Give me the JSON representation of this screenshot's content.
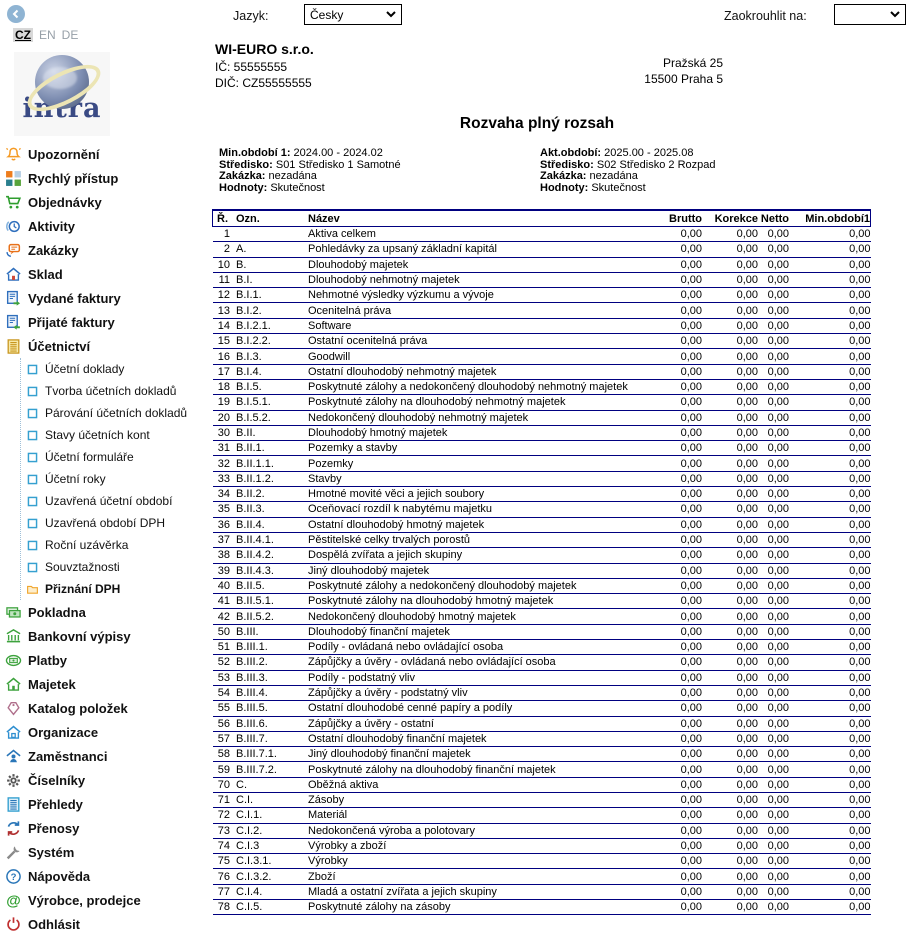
{
  "topbar": {
    "back_icon": "chevron-left-icon",
    "language_label": "Jazyk:",
    "language_value": "Česky",
    "round_label": "Zaokrouhlit na:",
    "round_value": ""
  },
  "sidebar": {
    "languages": [
      {
        "code": "CZ",
        "active": true
      },
      {
        "code": "EN",
        "active": false
      },
      {
        "code": "DE",
        "active": false
      }
    ],
    "logo_text": "intra",
    "menu": [
      {
        "label": "Upozornění",
        "icon": "bell-icon"
      },
      {
        "label": "Rychlý přístup",
        "icon": "grid-icon"
      },
      {
        "label": "Objednávky",
        "icon": "cart-icon"
      },
      {
        "label": "Aktivity",
        "icon": "clock-icon"
      },
      {
        "label": "Zakázky",
        "icon": "chat-phone-icon"
      },
      {
        "label": "Sklad",
        "icon": "warehouse-icon"
      },
      {
        "label": "Vydané faktury",
        "icon": "invoice-out-icon"
      },
      {
        "label": "Přijaté faktury",
        "icon": "invoice-in-icon"
      },
      {
        "label": "Účetnictví",
        "icon": "ledger-icon",
        "submenu": [
          {
            "label": "Účetní doklady",
            "icon": "checkbox-icon"
          },
          {
            "label": "Tvorba účetních dokladů",
            "icon": "checkbox-icon"
          },
          {
            "label": "Párování účetních dokladů",
            "icon": "checkbox-icon"
          },
          {
            "label": "Stavy účetních kont",
            "icon": "checkbox-icon"
          },
          {
            "label": "Účetní formuláře",
            "icon": "checkbox-icon"
          },
          {
            "label": "Účetní roky",
            "icon": "checkbox-icon"
          },
          {
            "label": "Uzavřená účetní období",
            "icon": "checkbox-icon"
          },
          {
            "label": "Uzavřená období DPH",
            "icon": "checkbox-icon"
          },
          {
            "label": "Roční uzávěrka",
            "icon": "checkbox-icon"
          },
          {
            "label": "Souvztažnosti",
            "icon": "checkbox-icon"
          },
          {
            "label": "Přiznání DPH",
            "icon": "folder-icon",
            "bold": true
          }
        ]
      },
      {
        "label": "Pokladna",
        "icon": "cash-icon"
      },
      {
        "label": "Bankovní výpisy",
        "icon": "bank-icon"
      },
      {
        "label": "Platby",
        "icon": "payment-icon"
      },
      {
        "label": "Majetek",
        "icon": "house-green-icon"
      },
      {
        "label": "Katalog položek",
        "icon": "tag-icon"
      },
      {
        "label": "Organizace",
        "icon": "house-blue-icon"
      },
      {
        "label": "Zaměstnanci",
        "icon": "person-house-icon"
      },
      {
        "label": "Číselníky",
        "icon": "gear-icon"
      },
      {
        "label": "Přehledy",
        "icon": "report-icon"
      },
      {
        "label": "Přenosy",
        "icon": "transfer-icon"
      },
      {
        "label": "Systém",
        "icon": "wrench-icon"
      },
      {
        "label": "Nápověda",
        "icon": "help-icon"
      },
      {
        "label": "Výrobce, prodejce",
        "icon": "at-icon"
      },
      {
        "label": "Odhlásit",
        "icon": "power-icon"
      }
    ]
  },
  "company": {
    "name": "WI-EURO s.r.o.",
    "ic": "IČ: 55555555",
    "dic": "DIČ: CZ55555555",
    "address_line1": "Pražská 25",
    "address_line2": "15500 Praha 5"
  },
  "report": {
    "title": "Rozvaha plný rozsah",
    "params_left": [
      {
        "label": "Min.období 1:",
        "value": "2024.00 - 2024.02"
      },
      {
        "label": "Středisko:",
        "value": "S01 Středisko 1 Samotné"
      },
      {
        "label": "Zakázka:",
        "value": "nezadána"
      },
      {
        "label": "Hodnoty:",
        "value": "Skutečnost"
      }
    ],
    "params_right": [
      {
        "label": "Akt.období:",
        "value": "2025.00 - 2025.08"
      },
      {
        "label": "Středisko:",
        "value": "S02 Středisko 2 Rozpad"
      },
      {
        "label": "Zakázka:",
        "value": "nezadána"
      },
      {
        "label": "Hodnoty:",
        "value": "Skutečnost"
      }
    ]
  },
  "table": {
    "columns": [
      "Ř.",
      "Ozn.",
      "Název",
      "Brutto",
      "Korekce",
      "Netto",
      "Min.období1"
    ],
    "rows": [
      [
        "1",
        "",
        "Aktiva celkem",
        "0,00",
        "0,00",
        "0,00",
        "0,00"
      ],
      [
        "2",
        "A.",
        "Pohledávky za upsaný základní kapitál",
        "0,00",
        "0,00",
        "0,00",
        "0,00"
      ],
      [
        "10",
        "B.",
        "Dlouhodobý majetek",
        "0,00",
        "0,00",
        "0,00",
        "0,00"
      ],
      [
        "11",
        "B.I.",
        "Dlouhodobý nehmotný majetek",
        "0,00",
        "0,00",
        "0,00",
        "0,00"
      ],
      [
        "12",
        "B.I.1.",
        "Nehmotné výsledky výzkumu a vývoje",
        "0,00",
        "0,00",
        "0,00",
        "0,00"
      ],
      [
        "13",
        "B.I.2.",
        "Ocenitelná práva",
        "0,00",
        "0,00",
        "0,00",
        "0,00"
      ],
      [
        "14",
        "B.I.2.1.",
        "Software",
        "0,00",
        "0,00",
        "0,00",
        "0,00"
      ],
      [
        "15",
        "B.I.2.2.",
        "Ostatní ocenitelná práva",
        "0,00",
        "0,00",
        "0,00",
        "0,00"
      ],
      [
        "16",
        "B.I.3.",
        "Goodwill",
        "0,00",
        "0,00",
        "0,00",
        "0,00"
      ],
      [
        "17",
        "B.I.4.",
        "Ostatní dlouhodobý nehmotný majetek",
        "0,00",
        "0,00",
        "0,00",
        "0,00"
      ],
      [
        "18",
        "B.I.5.",
        "Poskytnuté zálohy a nedokončený dlouhodobý nehmotný majetek",
        "0,00",
        "0,00",
        "0,00",
        "0,00"
      ],
      [
        "19",
        "B.I.5.1.",
        "Poskytnuté zálohy na dlouhodobý nehmotný majetek",
        "0,00",
        "0,00",
        "0,00",
        "0,00"
      ],
      [
        "20",
        "B.I.5.2.",
        "Nedokončený dlouhodobý nehmotný majetek",
        "0,00",
        "0,00",
        "0,00",
        "0,00"
      ],
      [
        "30",
        "B.II.",
        "Dlouhodobý hmotný majetek",
        "0,00",
        "0,00",
        "0,00",
        "0,00"
      ],
      [
        "31",
        "B.II.1.",
        "Pozemky a stavby",
        "0,00",
        "0,00",
        "0,00",
        "0,00"
      ],
      [
        "32",
        "B.II.1.1.",
        "Pozemky",
        "0,00",
        "0,00",
        "0,00",
        "0,00"
      ],
      [
        "33",
        "B.II.1.2.",
        "Stavby",
        "0,00",
        "0,00",
        "0,00",
        "0,00"
      ],
      [
        "34",
        "B.II.2.",
        "Hmotné movité věci a jejich soubory",
        "0,00",
        "0,00",
        "0,00",
        "0,00"
      ],
      [
        "35",
        "B.II.3.",
        "Oceňovací rozdíl k nabytému majetku",
        "0,00",
        "0,00",
        "0,00",
        "0,00"
      ],
      [
        "36",
        "B.II.4.",
        "Ostatní dlouhodobý hmotný majetek",
        "0,00",
        "0,00",
        "0,00",
        "0,00"
      ],
      [
        "37",
        "B.II.4.1.",
        "Pěstitelské celky trvalých porostů",
        "0,00",
        "0,00",
        "0,00",
        "0,00"
      ],
      [
        "38",
        "B.II.4.2.",
        "Dospělá zvířata a jejich skupiny",
        "0,00",
        "0,00",
        "0,00",
        "0,00"
      ],
      [
        "39",
        "B.II.4.3.",
        "Jiný dlouhodobý majetek",
        "0,00",
        "0,00",
        "0,00",
        "0,00"
      ],
      [
        "40",
        "B.II.5.",
        "Poskytnuté zálohy a nedokončený dlouhodobý majetek",
        "0,00",
        "0,00",
        "0,00",
        "0,00"
      ],
      [
        "41",
        "B.II.5.1.",
        "Poskytnuté zálohy na dlouhodobý hmotný majetek",
        "0,00",
        "0,00",
        "0,00",
        "0,00"
      ],
      [
        "42",
        "B.II.5.2.",
        "Nedokončený dlouhodobý hmotný majetek",
        "0,00",
        "0,00",
        "0,00",
        "0,00"
      ],
      [
        "50",
        "B.III.",
        "Dlouhodobý finanční majetek",
        "0,00",
        "0,00",
        "0,00",
        "0,00"
      ],
      [
        "51",
        "B.III.1.",
        "Podíly - ovládaná nebo ovládající osoba",
        "0,00",
        "0,00",
        "0,00",
        "0,00"
      ],
      [
        "52",
        "B.III.2.",
        "Zápůjčky a úvěry - ovládaná nebo ovládající osoba",
        "0,00",
        "0,00",
        "0,00",
        "0,00"
      ],
      [
        "53",
        "B.III.3.",
        "Podíly - podstatný vliv",
        "0,00",
        "0,00",
        "0,00",
        "0,00"
      ],
      [
        "54",
        "B.III.4.",
        "Zápůjčky a úvěry - podstatný vliv",
        "0,00",
        "0,00",
        "0,00",
        "0,00"
      ],
      [
        "55",
        "B.III.5.",
        "Ostatní dlouhodobé cenné papíry a podíly",
        "0,00",
        "0,00",
        "0,00",
        "0,00"
      ],
      [
        "56",
        "B.III.6.",
        "Zápůjčky a úvěry - ostatní",
        "0,00",
        "0,00",
        "0,00",
        "0,00"
      ],
      [
        "57",
        "B.III.7.",
        "Ostatní dlouhodobý finanční majetek",
        "0,00",
        "0,00",
        "0,00",
        "0,00"
      ],
      [
        "58",
        "B.III.7.1.",
        "Jiný dlouhodobý finanční majetek",
        "0,00",
        "0,00",
        "0,00",
        "0,00"
      ],
      [
        "59",
        "B.III.7.2.",
        "Poskytnuté zálohy na dlouhodobý finanční majetek",
        "0,00",
        "0,00",
        "0,00",
        "0,00"
      ],
      [
        "70",
        "C.",
        "Oběžná aktiva",
        "0,00",
        "0,00",
        "0,00",
        "0,00"
      ],
      [
        "71",
        "C.I.",
        "Zásoby",
        "0,00",
        "0,00",
        "0,00",
        "0,00"
      ],
      [
        "72",
        "C.I.1.",
        "Materiál",
        "0,00",
        "0,00",
        "0,00",
        "0,00"
      ],
      [
        "73",
        "C.I.2.",
        "Nedokončená výroba a polotovary",
        "0,00",
        "0,00",
        "0,00",
        "0,00"
      ],
      [
        "74",
        "C.I.3",
        "Výrobky a zboží",
        "0,00",
        "0,00",
        "0,00",
        "0,00"
      ],
      [
        "75",
        "C.I.3.1.",
        "Výrobky",
        "0,00",
        "0,00",
        "0,00",
        "0,00"
      ],
      [
        "76",
        "C.I.3.2.",
        "Zboží",
        "0,00",
        "0,00",
        "0,00",
        "0,00"
      ],
      [
        "77",
        "C.I.4.",
        "Mladá a ostatní zvířata a jejich skupiny",
        "0,00",
        "0,00",
        "0,00",
        "0,00"
      ],
      [
        "78",
        "C.I.5.",
        "Poskytnuté zálohy na zásoby",
        "0,00",
        "0,00",
        "0,00",
        "0,00"
      ]
    ]
  }
}
